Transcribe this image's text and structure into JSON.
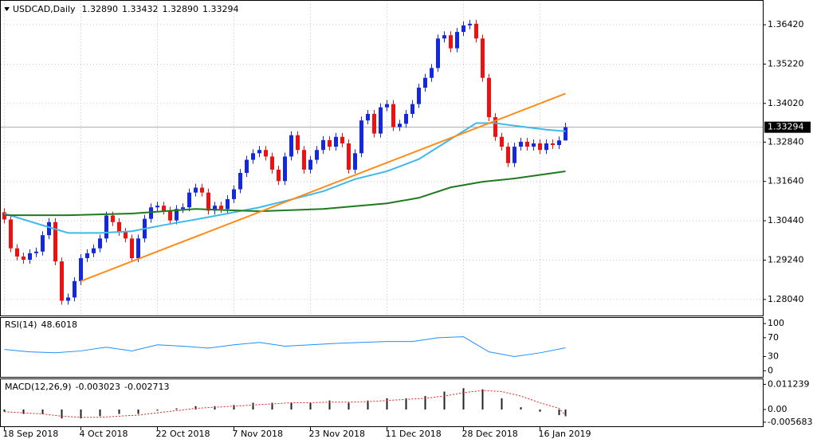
{
  "header": {
    "symbol": "USDCAD,Daily",
    "ohlc": [
      "1.32890",
      "1.33432",
      "1.32890",
      "1.33294"
    ]
  },
  "chart_data": [
    {
      "type": "candlestick",
      "ylim": [
        1.2755,
        1.3715
      ],
      "yticks": [
        {
          "value": 1.3642,
          "label": "1.36420"
        },
        {
          "value": 1.3522,
          "label": "1.35220"
        },
        {
          "value": 1.3402,
          "label": "1.34020"
        },
        {
          "value": 1.3284,
          "label": "1.32840"
        },
        {
          "value": 1.3164,
          "label": "1.31640"
        },
        {
          "value": 1.3044,
          "label": "1.30440"
        },
        {
          "value": 1.2924,
          "label": "1.29240"
        },
        {
          "value": 1.2804,
          "label": "1.28040"
        }
      ],
      "xticks": [
        {
          "value": 0,
          "label": "18 Sep 2018"
        },
        {
          "value": 12,
          "label": "4 Oct 2018"
        },
        {
          "value": 24,
          "label": "22 Oct 2018"
        },
        {
          "value": 36,
          "label": "7 Nov 2018"
        },
        {
          "value": 48,
          "label": "23 Nov 2018"
        },
        {
          "value": 60,
          "label": "11 Dec 2018"
        },
        {
          "value": 72,
          "label": "28 Dec 2018"
        },
        {
          "value": 84,
          "label": "16 Jan 2019"
        }
      ],
      "grid": true,
      "up_color": "#1428e0",
      "down_color": "#ee1111",
      "candles": [
        [
          1.307,
          1.3082,
          1.3036,
          1.3048
        ],
        [
          1.3048,
          1.306,
          1.2948,
          1.296
        ],
        [
          1.296,
          1.2972,
          1.2923,
          1.2935
        ],
        [
          1.2935,
          1.2947,
          1.2913,
          1.2925
        ],
        [
          1.2925,
          1.2957,
          1.2913,
          1.2945
        ],
        [
          1.2945,
          1.2962,
          1.2933,
          1.295
        ],
        [
          1.295,
          1.3012,
          1.2938,
          1.3
        ],
        [
          1.3,
          1.3052,
          1.2988,
          1.304
        ],
        [
          1.304,
          1.3052,
          1.2908,
          1.292
        ],
        [
          1.292,
          1.2932,
          1.2788,
          1.28
        ],
        [
          1.28,
          1.2822,
          1.2788,
          1.281
        ],
        [
          1.281,
          1.2872,
          1.2798,
          1.286
        ],
        [
          1.286,
          1.2942,
          1.2848,
          1.293
        ],
        [
          1.293,
          1.2957,
          1.2918,
          1.2945
        ],
        [
          1.2945,
          1.2972,
          1.2933,
          1.296
        ],
        [
          1.296,
          1.3002,
          1.2948,
          1.299
        ],
        [
          1.299,
          1.3072,
          1.2978,
          1.306
        ],
        [
          1.306,
          1.3072,
          1.3028,
          1.304
        ],
        [
          1.304,
          1.3052,
          1.2998,
          1.301
        ],
        [
          1.301,
          1.3022,
          1.2978,
          1.299
        ],
        [
          1.299,
          1.3002,
          1.2918,
          1.293
        ],
        [
          1.293,
          1.3002,
          1.2918,
          1.299
        ],
        [
          1.299,
          1.3062,
          1.2978,
          1.305
        ],
        [
          1.305,
          1.3097,
          1.3038,
          1.3085
        ],
        [
          1.3085,
          1.3102,
          1.3073,
          1.309
        ],
        [
          1.309,
          1.3102,
          1.3063,
          1.3075
        ],
        [
          1.3075,
          1.3087,
          1.3033,
          1.3045
        ],
        [
          1.3045,
          1.3092,
          1.3033,
          1.308
        ],
        [
          1.308,
          1.3097,
          1.3068,
          1.3085
        ],
        [
          1.3085,
          1.3142,
          1.3073,
          1.313
        ],
        [
          1.313,
          1.3157,
          1.3118,
          1.3145
        ],
        [
          1.3145,
          1.3157,
          1.3118,
          1.313
        ],
        [
          1.313,
          1.3142,
          1.3063,
          1.3075
        ],
        [
          1.3075,
          1.3102,
          1.3063,
          1.309
        ],
        [
          1.309,
          1.3102,
          1.3068,
          1.308
        ],
        [
          1.308,
          1.3122,
          1.3068,
          1.311
        ],
        [
          1.311,
          1.3152,
          1.3098,
          1.314
        ],
        [
          1.314,
          1.3202,
          1.3128,
          1.319
        ],
        [
          1.319,
          1.3242,
          1.3178,
          1.323
        ],
        [
          1.323,
          1.3262,
          1.3218,
          1.325
        ],
        [
          1.325,
          1.3272,
          1.3238,
          1.326
        ],
        [
          1.326,
          1.3272,
          1.3228,
          1.324
        ],
        [
          1.324,
          1.3252,
          1.3188,
          1.32
        ],
        [
          1.32,
          1.3212,
          1.3153,
          1.3165
        ],
        [
          1.3165,
          1.3252,
          1.3153,
          1.324
        ],
        [
          1.324,
          1.3317,
          1.3228,
          1.3305
        ],
        [
          1.3305,
          1.3317,
          1.3248,
          1.326
        ],
        [
          1.326,
          1.3272,
          1.3188,
          1.32
        ],
        [
          1.32,
          1.3242,
          1.3188,
          1.323
        ],
        [
          1.323,
          1.3272,
          1.3218,
          1.326
        ],
        [
          1.326,
          1.3302,
          1.3248,
          1.329
        ],
        [
          1.329,
          1.3302,
          1.3258,
          1.327
        ],
        [
          1.327,
          1.3312,
          1.3258,
          1.33
        ],
        [
          1.33,
          1.3312,
          1.3268,
          1.328
        ],
        [
          1.328,
          1.3292,
          1.3188,
          1.32
        ],
        [
          1.32,
          1.3262,
          1.3188,
          1.325
        ],
        [
          1.325,
          1.3362,
          1.3238,
          1.335
        ],
        [
          1.335,
          1.3382,
          1.3338,
          1.337
        ],
        [
          1.337,
          1.3382,
          1.3298,
          1.331
        ],
        [
          1.331,
          1.3402,
          1.3298,
          1.339
        ],
        [
          1.339,
          1.3412,
          1.3378,
          1.34
        ],
        [
          1.34,
          1.3412,
          1.3318,
          1.333
        ],
        [
          1.333,
          1.3352,
          1.3318,
          1.334
        ],
        [
          1.334,
          1.3382,
          1.3328,
          1.337
        ],
        [
          1.337,
          1.3412,
          1.3358,
          1.34
        ],
        [
          1.34,
          1.3462,
          1.3388,
          1.345
        ],
        [
          1.345,
          1.3492,
          1.3438,
          1.348
        ],
        [
          1.348,
          1.3522,
          1.3468,
          1.351
        ],
        [
          1.351,
          1.3612,
          1.3498,
          1.36
        ],
        [
          1.36,
          1.3622,
          1.3588,
          1.361
        ],
        [
          1.361,
          1.3622,
          1.3558,
          1.357
        ],
        [
          1.357,
          1.3632,
          1.3558,
          1.362
        ],
        [
          1.362,
          1.3652,
          1.3608,
          1.364
        ],
        [
          1.364,
          1.3657,
          1.3628,
          1.3645
        ],
        [
          1.3645,
          1.3657,
          1.3588,
          1.36
        ],
        [
          1.36,
          1.3612,
          1.3468,
          1.348
        ],
        [
          1.348,
          1.3492,
          1.3348,
          1.336
        ],
        [
          1.336,
          1.3372,
          1.3288,
          1.33
        ],
        [
          1.33,
          1.3312,
          1.3258,
          1.327
        ],
        [
          1.327,
          1.3282,
          1.3208,
          1.322
        ],
        [
          1.322,
          1.3282,
          1.3208,
          1.327
        ],
        [
          1.327,
          1.3297,
          1.3258,
          1.3285
        ],
        [
          1.3285,
          1.3297,
          1.3258,
          1.327
        ],
        [
          1.327,
          1.3292,
          1.3258,
          1.328
        ],
        [
          1.328,
          1.3292,
          1.3248,
          1.326
        ],
        [
          1.326,
          1.3292,
          1.3248,
          1.328
        ],
        [
          1.328,
          1.3292,
          1.3263,
          1.3275
        ],
        [
          1.3275,
          1.3301,
          1.3263,
          1.3289
        ],
        [
          1.3289,
          1.33432,
          1.3289,
          1.33294
        ]
      ],
      "series": [
        {
          "color": "#3fb8ec",
          "x": [
            0,
            5,
            10,
            15,
            20,
            25,
            30,
            35,
            40,
            45,
            50,
            55,
            60,
            65,
            70,
            74,
            77,
            80,
            85,
            88
          ],
          "values": [
            1.3066,
            1.3036,
            1.3007,
            1.3007,
            1.3012,
            1.3031,
            1.3048,
            1.3066,
            1.3085,
            1.3109,
            1.3134,
            1.3171,
            1.3195,
            1.3232,
            1.3293,
            1.3342,
            1.3342,
            1.3334,
            1.3322,
            1.3317
          ]
        },
        {
          "color": "#1f7a1f",
          "x": [
            0,
            10,
            20,
            30,
            40,
            50,
            60,
            65,
            70,
            75,
            80,
            88
          ],
          "values": [
            1.3061,
            1.3061,
            1.3066,
            1.308,
            1.3073,
            1.308,
            1.3097,
            1.3114,
            1.3146,
            1.3163,
            1.3173,
            1.3195
          ]
        },
        {
          "color": "#ff8c1a",
          "x": [
            12,
            88
          ],
          "values": [
            1.286,
            1.3432
          ]
        }
      ]
    },
    {
      "type": "line",
      "title": "RSI(14)",
      "ylim": [
        -13,
        112
      ],
      "yticks": [
        100,
        70,
        30,
        0
      ],
      "color": "#1e90ff",
      "x": [
        0,
        4,
        8,
        12,
        16,
        20,
        24,
        28,
        32,
        36,
        40,
        44,
        48,
        52,
        56,
        60,
        64,
        68,
        72,
        76,
        80,
        84,
        88
      ],
      "values": [
        45,
        40,
        38,
        42,
        50,
        42,
        55,
        52,
        48,
        55,
        60,
        52,
        55,
        58,
        60,
        62,
        62,
        70,
        72,
        40,
        30,
        38,
        48.6018
      ]
    },
    {
      "type": "macd",
      "title": "MACD(12,26,9)",
      "ylim": [
        -0.0075,
        0.0135
      ],
      "yticks": [
        0.011239,
        {
          "value": 0,
          "label": "0.00"
        },
        -0.005683
      ],
      "histogram_color": "#222222",
      "signal_color": "#e02020",
      "x": [
        0,
        3,
        6,
        9,
        12,
        15,
        18,
        21,
        24,
        27,
        30,
        33,
        36,
        39,
        42,
        45,
        48,
        51,
        54,
        57,
        60,
        63,
        66,
        69,
        72,
        75,
        78,
        81,
        84,
        87,
        88
      ],
      "histogram": [
        -0.001,
        -0.002,
        -0.002,
        -0.004,
        -0.004,
        -0.003,
        -0.002,
        -0.002,
        -0.0005,
        0.0005,
        0.0015,
        0.0015,
        0.002,
        0.003,
        0.003,
        0.003,
        0.003,
        0.004,
        0.003,
        0.004,
        0.005,
        0.005,
        0.006,
        0.008,
        0.0095,
        0.009,
        0.005,
        0.001,
        -0.001,
        -0.0025,
        -0.003023
      ],
      "signal": [
        -0.001,
        -0.0015,
        -0.002,
        -0.003,
        -0.0035,
        -0.0035,
        -0.003,
        -0.0025,
        -0.0015,
        -0.0005,
        0.0005,
        0.001,
        0.0015,
        0.002,
        0.0025,
        0.003,
        0.003,
        0.0033,
        0.0033,
        0.0035,
        0.004,
        0.0045,
        0.005,
        0.006,
        0.0075,
        0.0085,
        0.008,
        0.006,
        0.003,
        0.0005,
        -0.002713
      ]
    }
  ]
}
